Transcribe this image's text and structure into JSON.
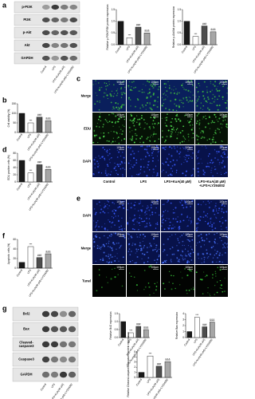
{
  "panel_letters": [
    "a",
    "b",
    "c",
    "d",
    "e",
    "f",
    "g"
  ],
  "groups": [
    "Control",
    "LPS",
    "LPS+KuA(40 μM)",
    "LPS+KuA(40 μM)+LY294002"
  ],
  "image_columns": [
    [
      "Control"
    ],
    [
      "LPS"
    ],
    [
      "LPS+KuA(40 μM)"
    ],
    [
      "LPS+KuA(40 μM)",
      "+LPS+LY294002"
    ]
  ],
  "scale_bar": "100μm",
  "rows_c": [
    "Merge",
    "EDU",
    "DAPI"
  ],
  "rows_e": [
    "DAPI",
    "Merge",
    "Tunel"
  ],
  "blots_a": [
    [
      "p-PI3K"
    ],
    [
      "PI3K"
    ],
    [
      "p-Akt"
    ],
    [
      "Akt"
    ],
    [
      "GAPDH"
    ]
  ],
  "blots_g": [
    [
      "Bcl2"
    ],
    [
      "Bax"
    ],
    [
      "Cleaved-",
      "caspase3"
    ],
    [
      "Caspase3"
    ],
    [
      "GAPDH"
    ]
  ],
  "bar_colors": [
    "#1a1a1a",
    "#ffffff",
    "#4d4d4d",
    "#a6a6a6"
  ],
  "charts": [
    {
      "type": "bar",
      "ylabel": "Relative p-PI3K/PI3K protein expression",
      "values": [
        1,
        0.3,
        0.75,
        0.5
      ],
      "ylim": [
        0,
        1.5
      ],
      "yticks": [
        {
          "value": 0,
          "label": "0.0"
        },
        0.5,
        {
          "value": 1,
          "label": "1.0"
        },
        1.5
      ],
      "sig": [
        "***",
        "###",
        "&&&"
      ]
    },
    {
      "type": "bar",
      "ylabel": "Relative p-Akt/Akt protein expression",
      "values": [
        1,
        0.35,
        0.8,
        0.55
      ],
      "ylim": [
        0,
        1.5
      ],
      "yticks": [
        {
          "value": 0,
          "label": "0.0"
        },
        0.5,
        {
          "value": 1,
          "label": "1.0"
        },
        1.5
      ],
      "sig": [
        "***",
        "###",
        "&&&"
      ]
    },
    {
      "type": "bar",
      "ylabel": "Cell viability (%)",
      "values": [
        100,
        50,
        80,
        62
      ],
      "ylim": [
        0,
        150
      ],
      "yticks": [
        0,
        50,
        100,
        150
      ],
      "sig": [
        "***",
        "###",
        "&&&"
      ]
    },
    {
      "type": "bar",
      "ylabel": "EDU positive cells (%)",
      "values": [
        60,
        25,
        48,
        35
      ],
      "ylim": [
        0,
        80
      ],
      "yticks": [
        0,
        20,
        40,
        60,
        80
      ],
      "sig": [
        "***",
        "###",
        "&&&"
      ]
    },
    {
      "type": "bar",
      "ylabel": "Apoptotic cells (%)",
      "values": [
        12,
        45,
        22,
        30
      ],
      "ylim": [
        0,
        60
      ],
      "yticks": [
        0,
        20,
        40,
        60
      ],
      "sig": [
        "***",
        "###",
        "&&&"
      ]
    },
    {
      "type": "bar",
      "ylabel": "Relative Bcl2 expression",
      "values": [
        1,
        0.3,
        0.7,
        0.5
      ],
      "ylim": [
        0,
        1.5
      ],
      "yticks": [
        {
          "value": 0,
          "label": "0.0"
        },
        0.5,
        {
          "value": 1,
          "label": "1.0"
        },
        1.5
      ],
      "sig": [
        "***",
        "###",
        "&&&"
      ]
    },
    {
      "type": "bar",
      "ylabel": "Relative Bax expression",
      "values": [
        1,
        3.4,
        1.8,
        2.6
      ],
      "ylim": [
        0,
        4
      ],
      "yticks": [
        0,
        1,
        2,
        3,
        4
      ],
      "sig": [
        "***",
        "###",
        "&&&"
      ]
    },
    {
      "type": "bar",
      "ylabel": "Relative Cleaved-caspase3/Caspase3 protein expression",
      "values": [
        1,
        4.2,
        2.2,
        3.1
      ],
      "ylim": [
        0,
        5
      ],
      "yticks": [
        0,
        1,
        2,
        3,
        4,
        5
      ],
      "sig": [
        "***",
        "###",
        "&&&"
      ]
    }
  ]
}
